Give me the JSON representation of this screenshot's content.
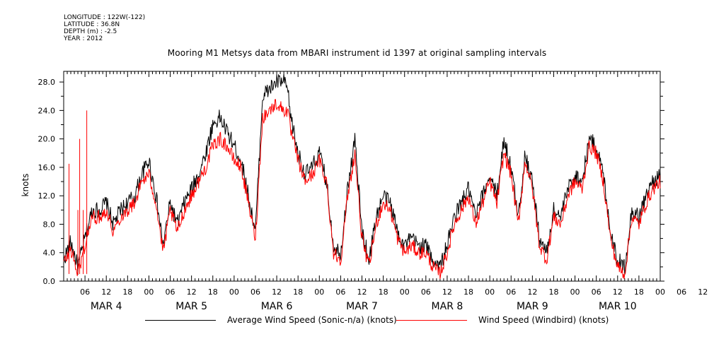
{
  "header": {
    "longitude": "LONGITUDE : 122W(-122)",
    "latitude": "LATITUDE : 36.8N",
    "depth": "DEPTH (m) : -2.5",
    "year": "YEAR : 2012"
  },
  "chart_data": {
    "type": "line",
    "title": "Mooring M1 Metsys data from MBARI instrument id 1397 at original sampling intervals",
    "ylabel": "knots",
    "xlabel": "",
    "ylim": [
      0,
      29.5
    ],
    "yticks": [
      "0.0",
      "4.0",
      "8.0",
      "12.0",
      "16.0",
      "20.0",
      "24.0",
      "28.0"
    ],
    "x_hour_range": [
      0,
      168
    ],
    "x_tick_labels": [
      "06",
      "12",
      "18",
      "00",
      "06",
      "12",
      "18",
      "00",
      "06",
      "12",
      "18",
      "00",
      "06",
      "12",
      "18",
      "00",
      "06",
      "12",
      "18",
      "00",
      "06",
      "12",
      "18",
      "00",
      "06",
      "12",
      "18",
      "00",
      "06",
      "12",
      "18",
      "00"
    ],
    "x_day_labels": [
      "MAR  4",
      "MAR  5",
      "MAR  6",
      "MAR  7",
      "MAR  8",
      "MAR  9",
      "MAR 10"
    ],
    "grid": false,
    "legend_position": "bottom",
    "series": [
      {
        "name": "Average Wind Speed (Sonic-n/a) (knots)",
        "color": "#000000",
        "x": [
          0,
          2,
          4,
          6,
          8,
          10,
          12,
          14,
          16,
          18,
          20,
          22,
          24,
          26,
          28,
          30,
          32,
          34,
          36,
          38,
          40,
          42,
          44,
          46,
          48,
          50,
          52,
          54,
          56,
          58,
          60,
          62,
          63,
          64,
          66,
          68,
          70,
          72,
          74,
          76,
          78,
          80,
          82,
          84,
          86,
          88,
          90,
          92,
          94,
          96,
          98,
          100,
          102,
          104,
          106,
          108,
          110,
          112,
          114,
          116,
          118,
          120,
          122,
          124,
          126,
          128,
          130,
          132,
          134,
          136,
          138,
          140,
          142,
          144,
          146,
          148,
          150,
          152,
          154,
          156,
          158,
          160,
          162,
          164,
          166,
          168
        ],
        "y": [
          3,
          5.5,
          2,
          6,
          10,
          10,
          11,
          8,
          10,
          11,
          12,
          15,
          17,
          12,
          5,
          11,
          8,
          11,
          13,
          15,
          18,
          22,
          23,
          21,
          19,
          17,
          12,
          7,
          26,
          27,
          28,
          28,
          27,
          23,
          18,
          15,
          16,
          18,
          14,
          5,
          4,
          13,
          20,
          7,
          3,
          9,
          12,
          11,
          7,
          5,
          6,
          5,
          5,
          3,
          2,
          5,
          9,
          11,
          13,
          9,
          12,
          15,
          12,
          20,
          16,
          9,
          18,
          14,
          6,
          4,
          10,
          9,
          13,
          15,
          14,
          20,
          19,
          15,
          7,
          3,
          2,
          10,
          9,
          12,
          14,
          15
        ],
        "noise": 1.2
      },
      {
        "name": "Wind Speed (Windbird) (knots)",
        "color": "#ff0000",
        "x": [
          0,
          2,
          4,
          6,
          8,
          10,
          12,
          14,
          16,
          18,
          20,
          22,
          24,
          26,
          28,
          30,
          32,
          34,
          36,
          38,
          40,
          42,
          44,
          46,
          48,
          50,
          52,
          54,
          56,
          58,
          60,
          62,
          63,
          64,
          66,
          68,
          70,
          72,
          74,
          76,
          78,
          80,
          82,
          84,
          86,
          88,
          90,
          92,
          94,
          96,
          98,
          100,
          102,
          104,
          106,
          108,
          110,
          112,
          114,
          116,
          118,
          120,
          122,
          124,
          126,
          128,
          130,
          132,
          134,
          136,
          138,
          140,
          142,
          144,
          146,
          148,
          150,
          152,
          154,
          156,
          158,
          160,
          162,
          164,
          166,
          168
        ],
        "y": [
          2.5,
          4.5,
          1,
          5,
          9,
          9,
          10,
          7,
          9,
          10,
          11,
          14,
          15,
          11,
          4,
          10,
          7,
          10,
          12,
          14,
          16,
          19,
          20,
          19,
          17,
          16,
          11,
          6,
          23,
          24,
          25,
          24,
          24,
          21,
          17,
          14,
          15,
          17,
          14,
          4,
          3,
          12,
          18,
          6,
          2,
          8,
          11,
          10,
          6,
          4,
          5,
          4,
          4,
          2,
          1,
          4,
          8,
          10,
          12,
          8,
          11,
          14,
          11,
          18,
          15,
          8,
          17,
          13,
          5,
          3,
          9,
          8,
          12,
          14,
          13,
          19,
          18,
          14,
          6,
          2,
          1,
          9,
          8,
          11,
          13,
          14
        ],
        "noise": 1.0
      }
    ],
    "spikes": [
      {
        "hour": 1.5,
        "value": 16.5
      },
      {
        "hour": 4.0,
        "value": 10.0
      },
      {
        "hour": 4.5,
        "value": 20.0
      },
      {
        "hour": 5.5,
        "value": 10.0
      },
      {
        "hour": 6.5,
        "value": 24.0
      }
    ]
  }
}
